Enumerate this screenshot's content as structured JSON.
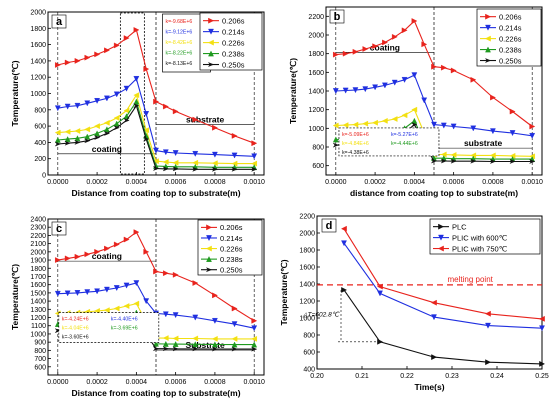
{
  "figure": {
    "background": "#ffffff"
  },
  "chart_data": [
    {
      "panel": "a",
      "type": "line",
      "xlabel": "Distance from coating top to substrate(m)",
      "ylabel": "Temperature(℃)",
      "xlim": [
        -5e-05,
        0.00105
      ],
      "ylim": [
        0,
        2000
      ],
      "xticks": [
        "0.0000",
        "0.0002",
        "0.0004",
        "0.0006",
        "0.0008",
        "0.0010"
      ],
      "yticks": [
        0,
        200,
        400,
        600,
        800,
        1000,
        1200,
        1400,
        1600,
        1800,
        2000
      ],
      "legend_position": "top-right",
      "x": [
        0,
        5e-05,
        0.0001,
        0.00015,
        0.0002,
        0.00025,
        0.0003,
        0.00035,
        0.0004,
        0.00045,
        0.0005,
        0.00055,
        0.0006,
        0.0007,
        0.0008,
        0.0009,
        0.001
      ],
      "series": [
        {
          "name": "0.206s",
          "color": "#e8231d",
          "marker": "tri-right",
          "values": [
            1350,
            1380,
            1400,
            1440,
            1480,
            1530,
            1590,
            1680,
            1780,
            1300,
            900,
            840,
            780,
            680,
            580,
            480,
            390
          ]
        },
        {
          "name": "0.214s",
          "color": "#1f2fe0",
          "marker": "tri-down",
          "values": [
            820,
            840,
            850,
            880,
            910,
            940,
            990,
            1060,
            1180,
            750,
            300,
            280,
            270,
            260,
            250,
            240,
            230
          ]
        },
        {
          "name": "0.226s",
          "color": "#f3e011",
          "marker": "tri-left",
          "values": [
            520,
            530,
            540,
            560,
            600,
            640,
            700,
            790,
            980,
            550,
            170,
            160,
            150,
            150,
            145,
            140,
            140
          ]
        },
        {
          "name": "0.238s",
          "color": "#1f9a1f",
          "marker": "tri-up",
          "values": [
            430,
            440,
            450,
            470,
            510,
            560,
            630,
            720,
            900,
            480,
            110,
            105,
            100,
            100,
            95,
            95,
            95
          ]
        },
        {
          "name": "0.250s",
          "color": "#111111",
          "marker": "arrow-right",
          "values": [
            380,
            390,
            400,
            420,
            460,
            510,
            580,
            670,
            850,
            440,
            80,
            75,
            75,
            70,
            70,
            70,
            70
          ]
        }
      ],
      "annotations": {
        "k_values": [
          {
            "text": "k=-9.68E+6",
            "color": "#e8231d"
          },
          {
            "text": "k=-9.12E+6",
            "color": "#1f2fe0"
          },
          {
            "text": "k=-8.42E+6",
            "color": "#f3e011"
          },
          {
            "text": "k=-8.22E+6",
            "color": "#1f9a1f"
          },
          {
            "text": "k=-8.13E+6",
            "color": "#111111"
          }
        ],
        "region_labels": [
          "coating",
          "substrate"
        ]
      }
    },
    {
      "panel": "b",
      "type": "line",
      "xlabel": "distance from coating top to substrate(m)",
      "ylabel": "Temperature(℃)",
      "xlim": [
        -5e-05,
        0.00105
      ],
      "ylim": [
        500,
        2300
      ],
      "xticks": [
        "0.0000",
        "0.0002",
        "0.0004",
        "0.0006",
        "0.0008",
        "0.0010"
      ],
      "yticks": [
        600,
        800,
        1000,
        1200,
        1400,
        1600,
        1800,
        2000,
        2200
      ],
      "legend_position": "top-right",
      "x": [
        0,
        5e-05,
        0.0001,
        0.00015,
        0.0002,
        0.00025,
        0.0003,
        0.00035,
        0.0004,
        0.00045,
        0.0005,
        0.00055,
        0.0006,
        0.0007,
        0.0008,
        0.0009,
        0.001
      ],
      "series": [
        {
          "name": "0.206s",
          "color": "#e8231d",
          "marker": "tri-right",
          "values": [
            1790,
            1800,
            1820,
            1850,
            1880,
            1920,
            1980,
            2050,
            2150,
            1900,
            1660,
            1650,
            1620,
            1520,
            1330,
            1180,
            1020
          ]
        },
        {
          "name": "0.214s",
          "color": "#1f2fe0",
          "marker": "tri-down",
          "values": [
            1400,
            1405,
            1410,
            1420,
            1440,
            1460,
            1490,
            1520,
            1570,
            1300,
            1040,
            1030,
            1020,
            1000,
            970,
            950,
            920
          ]
        },
        {
          "name": "0.226s",
          "color": "#f3e011",
          "marker": "tri-left",
          "values": [
            1030,
            1035,
            1040,
            1050,
            1060,
            1080,
            1100,
            1140,
            1200,
            950,
            720,
            720,
            715,
            710,
            710,
            705,
            700
          ]
        },
        {
          "name": "0.238s",
          "color": "#1f9a1f",
          "marker": "tri-up",
          "values": [
            880,
            885,
            890,
            900,
            915,
            935,
            960,
            1000,
            1080,
            860,
            680,
            680,
            675,
            675,
            670,
            670,
            670
          ]
        },
        {
          "name": "0.250s",
          "color": "#111111",
          "marker": "arrow-right",
          "values": [
            820,
            825,
            830,
            840,
            860,
            880,
            910,
            950,
            1040,
            830,
            650,
            650,
            648,
            648,
            645,
            645,
            645
          ]
        }
      ],
      "annotations": {
        "k_values": [
          {
            "text": "k=-5.09E+6",
            "color": "#e8231d"
          },
          {
            "text": "k=-5.27E+6",
            "color": "#1f2fe0"
          },
          {
            "text": "k=-4.84E+6",
            "color": "#f3e011"
          },
          {
            "text": "k=-4.44E+6",
            "color": "#1f9a1f"
          },
          {
            "text": "k=-4.38E+6",
            "color": "#111111"
          }
        ],
        "region_labels": [
          "coating",
          "substrate"
        ]
      }
    },
    {
      "panel": "c",
      "type": "line",
      "xlabel": "Distance from coating top to substrate(m)",
      "ylabel": "Temperature(℃)",
      "xlim": [
        -5e-05,
        0.00105
      ],
      "ylim": [
        500,
        2400
      ],
      "xticks": [
        "0.0000",
        "0.0002",
        "0.0004",
        "0.0006",
        "0.0008",
        "0.0010"
      ],
      "yticks": [
        600,
        700,
        800,
        900,
        1000,
        1100,
        1200,
        1300,
        1400,
        1500,
        1600,
        1700,
        1800,
        1900,
        2000,
        2100,
        2200,
        2300,
        2400
      ],
      "legend_position": "top-right",
      "x": [
        0,
        5e-05,
        0.0001,
        0.00015,
        0.0002,
        0.00025,
        0.0003,
        0.00035,
        0.0004,
        0.00045,
        0.0005,
        0.00055,
        0.0006,
        0.0007,
        0.0008,
        0.0009,
        0.001
      ],
      "series": [
        {
          "name": "0.206s",
          "color": "#e8231d",
          "marker": "tri-right",
          "values": [
            1900,
            1920,
            1940,
            1970,
            2000,
            2040,
            2090,
            2150,
            2240,
            2000,
            1760,
            1740,
            1720,
            1620,
            1470,
            1310,
            1160
          ]
        },
        {
          "name": "0.214s",
          "color": "#1f2fe0",
          "marker": "tri-down",
          "values": [
            1490,
            1495,
            1500,
            1510,
            1520,
            1540,
            1560,
            1590,
            1620,
            1400,
            1250,
            1240,
            1230,
            1200,
            1160,
            1120,
            1070
          ]
        },
        {
          "name": "0.226s",
          "color": "#f3e011",
          "marker": "tri-left",
          "values": [
            1250,
            1255,
            1260,
            1270,
            1280,
            1290,
            1310,
            1340,
            1370,
            1150,
            950,
            950,
            945,
            945,
            940,
            940,
            940
          ]
        },
        {
          "name": "0.238s",
          "color": "#1f9a1f",
          "marker": "tri-up",
          "values": [
            1120,
            1125,
            1130,
            1140,
            1150,
            1160,
            1180,
            1210,
            1260,
            1060,
            880,
            878,
            876,
            874,
            872,
            870,
            870
          ]
        },
        {
          "name": "0.250s",
          "color": "#111111",
          "marker": "arrow-right",
          "values": [
            1040,
            1045,
            1050,
            1060,
            1070,
            1080,
            1100,
            1140,
            1200,
            1000,
            820,
            820,
            818,
            818,
            816,
            816,
            815
          ]
        }
      ],
      "annotations": {
        "k_values": [
          {
            "text": "k=-4.24E+6",
            "color": "#e8231d"
          },
          {
            "text": "k=-4.40E+6",
            "color": "#1f2fe0"
          },
          {
            "text": "k=-4.04E+6",
            "color": "#f3e011"
          },
          {
            "text": "k=-3.69E+6",
            "color": "#1f9a1f"
          },
          {
            "text": "k=-3.60E+6",
            "color": "#111111"
          }
        ],
        "region_labels": [
          "coating",
          "Substrate"
        ]
      }
    },
    {
      "panel": "d",
      "type": "line",
      "xlabel": "Time(s)",
      "ylabel": "Temperature(℃)",
      "xlim": [
        0.2,
        0.25
      ],
      "ylim": [
        400,
        2200
      ],
      "xticks": [
        "0.20",
        "0.21",
        "0.22",
        "0.23",
        "0.24",
        "0.25"
      ],
      "yticks": [
        400,
        600,
        800,
        1000,
        1200,
        1400,
        1600,
        1800,
        2000,
        2200
      ],
      "legend_position": "top-right",
      "x": [
        0.206,
        0.214,
        0.226,
        0.238,
        0.25
      ],
      "series": [
        {
          "name": "PLC",
          "color": "#111111",
          "marker": "tri-right",
          "values": [
            1330,
            720,
            540,
            480,
            460
          ]
        },
        {
          "name": "PLIC with 600℃",
          "color": "#1f2fe0",
          "marker": "tri-down",
          "values": [
            1880,
            1290,
            1010,
            910,
            880
          ]
        },
        {
          "name": "PLIC with 750℃",
          "color": "#e8231d",
          "marker": "tri-left",
          "values": [
            2050,
            1370,
            1180,
            1050,
            990
          ]
        }
      ],
      "annotations": {
        "reference_line": {
          "label": "melting point",
          "value": 1390,
          "color": "#e8231d"
        },
        "delta_label": "△T=602.8℃"
      }
    }
  ]
}
